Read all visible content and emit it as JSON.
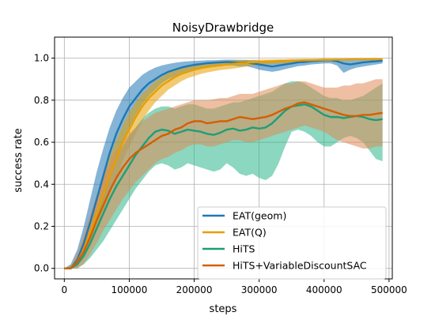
{
  "chart_data": {
    "type": "line",
    "title": "NoisyDrawbridge",
    "xlabel": "steps",
    "ylabel": "success rate",
    "xlim": [
      -15000,
      505000
    ],
    "ylim": [
      -0.05,
      1.1
    ],
    "xticks": [
      0,
      100000,
      200000,
      300000,
      400000,
      500000
    ],
    "xtick_labels": [
      "0",
      "100000",
      "200000",
      "300000",
      "400000",
      "500000"
    ],
    "yticks": [
      0.0,
      0.2,
      0.4,
      0.6,
      0.8,
      1.0
    ],
    "ytick_labels": [
      "0.0",
      "0.2",
      "0.4",
      "0.6",
      "0.8",
      "1.0"
    ],
    "grid": true,
    "legend_position": "lower-right",
    "x": [
      0,
      10000,
      20000,
      30000,
      40000,
      50000,
      60000,
      70000,
      80000,
      90000,
      100000,
      110000,
      120000,
      130000,
      140000,
      150000,
      160000,
      170000,
      180000,
      190000,
      200000,
      210000,
      220000,
      230000,
      240000,
      250000,
      260000,
      270000,
      280000,
      290000,
      300000,
      310000,
      320000,
      330000,
      340000,
      350000,
      360000,
      370000,
      380000,
      390000,
      400000,
      410000,
      420000,
      430000,
      440000,
      450000,
      460000,
      470000,
      480000,
      490000
    ],
    "series": [
      {
        "name": "EAT(geom)",
        "color": "#1f77b4",
        "band_color": "#1f77b4",
        "mean": [
          0.0,
          0.0,
          0.04,
          0.12,
          0.22,
          0.33,
          0.44,
          0.55,
          0.64,
          0.71,
          0.77,
          0.81,
          0.85,
          0.88,
          0.9,
          0.92,
          0.935,
          0.945,
          0.955,
          0.962,
          0.968,
          0.972,
          0.976,
          0.978,
          0.98,
          0.982,
          0.98,
          0.978,
          0.98,
          0.975,
          0.97,
          0.965,
          0.96,
          0.965,
          0.97,
          0.975,
          0.98,
          0.982,
          0.985,
          0.987,
          0.99,
          0.99,
          0.985,
          0.975,
          0.97,
          0.975,
          0.98,
          0.983,
          0.985,
          0.988
        ],
        "lower": [
          0.0,
          0.0,
          0.01,
          0.06,
          0.13,
          0.22,
          0.32,
          0.42,
          0.52,
          0.6,
          0.67,
          0.73,
          0.78,
          0.82,
          0.85,
          0.88,
          0.9,
          0.915,
          0.93,
          0.94,
          0.948,
          0.955,
          0.96,
          0.963,
          0.965,
          0.965,
          0.965,
          0.96,
          0.962,
          0.955,
          0.945,
          0.94,
          0.935,
          0.94,
          0.948,
          0.955,
          0.962,
          0.965,
          0.97,
          0.972,
          0.975,
          0.975,
          0.965,
          0.93,
          0.945,
          0.955,
          0.96,
          0.965,
          0.97,
          0.975
        ],
        "upper": [
          0.0,
          0.02,
          0.09,
          0.2,
          0.33,
          0.46,
          0.57,
          0.67,
          0.75,
          0.81,
          0.86,
          0.89,
          0.92,
          0.94,
          0.955,
          0.965,
          0.972,
          0.978,
          0.982,
          0.985,
          0.987,
          0.988,
          0.99,
          0.99,
          0.992,
          0.993,
          0.993,
          0.992,
          0.992,
          0.99,
          0.988,
          0.985,
          0.983,
          0.985,
          0.988,
          0.99,
          0.992,
          0.993,
          0.994,
          0.995,
          0.996,
          0.996,
          0.995,
          0.99,
          0.99,
          0.992,
          0.993,
          0.994,
          0.995,
          0.996
        ]
      },
      {
        "name": "EAT(Q)",
        "color": "#e69f00",
        "band_color": "#e69f00",
        "mean": [
          0.0,
          0.0,
          0.03,
          0.09,
          0.17,
          0.26,
          0.35,
          0.44,
          0.52,
          0.6,
          0.66,
          0.72,
          0.77,
          0.81,
          0.84,
          0.87,
          0.89,
          0.91,
          0.925,
          0.935,
          0.945,
          0.952,
          0.958,
          0.962,
          0.966,
          0.97,
          0.973,
          0.976,
          0.978,
          0.98,
          0.982,
          0.984,
          0.985,
          0.986,
          0.987,
          0.988,
          0.989,
          0.99,
          0.99,
          0.991,
          0.992,
          0.992,
          0.993,
          0.993,
          0.994,
          0.994,
          0.995,
          0.995,
          0.995,
          0.996
        ],
        "lower": [
          0.0,
          0.0,
          0.01,
          0.05,
          0.11,
          0.19,
          0.27,
          0.35,
          0.43,
          0.51,
          0.58,
          0.64,
          0.7,
          0.75,
          0.79,
          0.82,
          0.85,
          0.87,
          0.89,
          0.905,
          0.915,
          0.925,
          0.932,
          0.938,
          0.943,
          0.947,
          0.95,
          0.955,
          0.96,
          0.963,
          0.967,
          0.97,
          0.972,
          0.974,
          0.976,
          0.978,
          0.98,
          0.982,
          0.983,
          0.984,
          0.985,
          0.986,
          0.987,
          0.988,
          0.988,
          0.989,
          0.99,
          0.99,
          0.99,
          0.991
        ],
        "upper": [
          0.0,
          0.01,
          0.06,
          0.14,
          0.24,
          0.34,
          0.44,
          0.53,
          0.61,
          0.68,
          0.74,
          0.79,
          0.83,
          0.86,
          0.89,
          0.91,
          0.93,
          0.945,
          0.955,
          0.963,
          0.97,
          0.975,
          0.979,
          0.982,
          0.985,
          0.987,
          0.989,
          0.99,
          0.991,
          0.992,
          0.993,
          0.994,
          0.994,
          0.995,
          0.995,
          0.996,
          0.996,
          0.997,
          0.997,
          0.997,
          0.998,
          0.998,
          0.998,
          0.998,
          0.998,
          0.999,
          0.999,
          0.999,
          0.999,
          0.999
        ]
      },
      {
        "name": "HiTS",
        "color": "#1d9e77",
        "band_color": "#2bb68a",
        "mean": [
          0.0,
          0.0,
          0.02,
          0.06,
          0.12,
          0.19,
          0.26,
          0.33,
          0.39,
          0.44,
          0.49,
          0.54,
          0.58,
          0.62,
          0.65,
          0.66,
          0.655,
          0.64,
          0.65,
          0.66,
          0.655,
          0.65,
          0.64,
          0.635,
          0.645,
          0.66,
          0.665,
          0.655,
          0.66,
          0.67,
          0.665,
          0.67,
          0.69,
          0.72,
          0.75,
          0.77,
          0.775,
          0.78,
          0.77,
          0.75,
          0.73,
          0.72,
          0.72,
          0.715,
          0.72,
          0.725,
          0.72,
          0.71,
          0.705,
          0.71
        ],
        "lower": [
          0.0,
          0.0,
          0.0,
          0.02,
          0.05,
          0.09,
          0.13,
          0.18,
          0.23,
          0.28,
          0.33,
          0.38,
          0.42,
          0.46,
          0.49,
          0.5,
          0.49,
          0.47,
          0.48,
          0.5,
          0.49,
          0.48,
          0.47,
          0.46,
          0.47,
          0.5,
          0.48,
          0.45,
          0.44,
          0.45,
          0.43,
          0.42,
          0.44,
          0.5,
          0.58,
          0.65,
          0.66,
          0.65,
          0.63,
          0.6,
          0.58,
          0.58,
          0.6,
          0.62,
          0.63,
          0.62,
          0.6,
          0.56,
          0.52,
          0.51
        ],
        "upper": [
          0.0,
          0.01,
          0.05,
          0.11,
          0.19,
          0.28,
          0.37,
          0.45,
          0.52,
          0.58,
          0.63,
          0.67,
          0.71,
          0.74,
          0.76,
          0.77,
          0.77,
          0.76,
          0.77,
          0.78,
          0.78,
          0.77,
          0.76,
          0.76,
          0.77,
          0.78,
          0.79,
          0.79,
          0.8,
          0.81,
          0.82,
          0.83,
          0.84,
          0.86,
          0.88,
          0.89,
          0.89,
          0.88,
          0.86,
          0.84,
          0.82,
          0.81,
          0.81,
          0.8,
          0.8,
          0.81,
          0.82,
          0.84,
          0.86,
          0.88
        ]
      },
      {
        "name": "HiTS+VariableDiscountSAC",
        "color": "#d55e00",
        "band_color": "#e08a55",
        "mean": [
          0.0,
          0.0,
          0.03,
          0.08,
          0.15,
          0.23,
          0.3,
          0.37,
          0.43,
          0.48,
          0.52,
          0.55,
          0.57,
          0.59,
          0.61,
          0.63,
          0.64,
          0.66,
          0.67,
          0.69,
          0.7,
          0.7,
          0.69,
          0.695,
          0.7,
          0.7,
          0.71,
          0.72,
          0.715,
          0.71,
          0.715,
          0.72,
          0.73,
          0.745,
          0.76,
          0.77,
          0.785,
          0.79,
          0.78,
          0.77,
          0.76,
          0.75,
          0.74,
          0.73,
          0.725,
          0.725,
          0.73,
          0.73,
          0.735,
          0.74
        ],
        "lower": [
          0.0,
          0.0,
          0.0,
          0.02,
          0.07,
          0.12,
          0.18,
          0.23,
          0.28,
          0.33,
          0.37,
          0.41,
          0.44,
          0.47,
          0.5,
          0.52,
          0.53,
          0.55,
          0.56,
          0.58,
          0.59,
          0.59,
          0.58,
          0.58,
          0.59,
          0.6,
          0.61,
          0.61,
          0.6,
          0.6,
          0.61,
          0.62,
          0.63,
          0.64,
          0.65,
          0.66,
          0.67,
          0.68,
          0.67,
          0.66,
          0.65,
          0.63,
          0.61,
          0.6,
          0.59,
          0.58,
          0.57,
          0.57,
          0.58,
          0.58
        ],
        "upper": [
          0.0,
          0.01,
          0.07,
          0.16,
          0.26,
          0.35,
          0.43,
          0.5,
          0.56,
          0.6,
          0.64,
          0.67,
          0.7,
          0.72,
          0.74,
          0.75,
          0.76,
          0.77,
          0.78,
          0.79,
          0.8,
          0.8,
          0.8,
          0.805,
          0.81,
          0.81,
          0.82,
          0.83,
          0.83,
          0.83,
          0.84,
          0.85,
          0.86,
          0.87,
          0.88,
          0.88,
          0.89,
          0.89,
          0.88,
          0.87,
          0.86,
          0.86,
          0.86,
          0.87,
          0.87,
          0.88,
          0.88,
          0.89,
          0.9,
          0.9
        ]
      }
    ]
  }
}
